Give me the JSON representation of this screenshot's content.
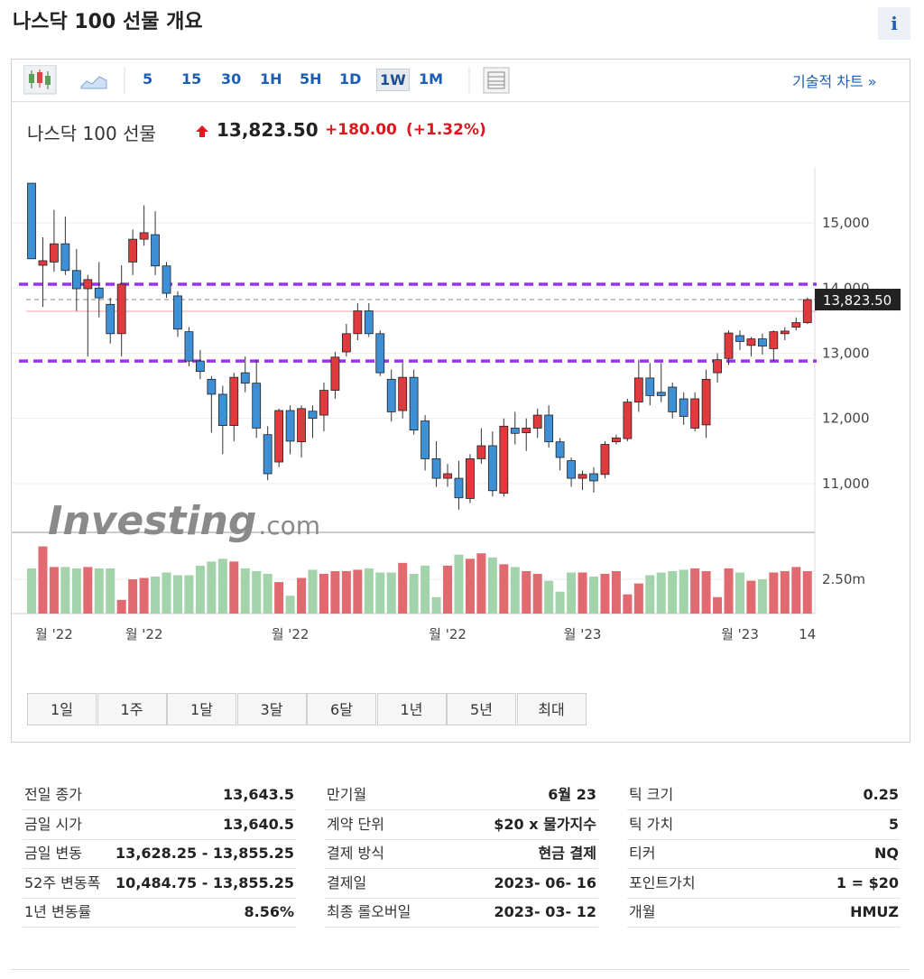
{
  "header": {
    "title": "나스닥 100 선물 개요",
    "info": "i"
  },
  "toolbar": {
    "intervals": [
      "5",
      "15",
      "30",
      "1H",
      "5H",
      "1D",
      "1W",
      "1M"
    ],
    "selected_interval": "1W",
    "technical_link": "기술적 차트 »"
  },
  "quote": {
    "name": "나스닥 100 선물",
    "price": "13,823.50",
    "change": "+180.00",
    "change_pct": "(+1.32%)"
  },
  "chart_data": {
    "type": "candlestick",
    "categories": [
      null,
      null,
      "월 '22",
      null,
      null,
      null,
      null,
      null,
      null,
      null,
      "월 '22",
      null,
      null,
      null,
      null,
      null,
      null,
      null,
      null,
      null,
      null,
      null,
      null,
      "월 '22",
      null,
      null,
      null,
      null,
      null,
      null,
      null,
      null,
      null,
      null,
      null,
      null,
      null,
      "월 '22",
      null,
      null,
      null,
      null,
      null,
      null,
      null,
      null,
      null,
      null,
      null,
      "월 '23",
      null,
      null,
      null,
      null,
      null,
      null,
      null,
      null,
      null,
      null,
      null,
      null,
      null,
      "월 '23",
      null,
      null,
      null,
      null,
      null,
      "14"
    ],
    "candles": [
      [
        15610,
        15610,
        14450,
        14450
      ],
      [
        14350,
        14780,
        13710,
        14420
      ],
      [
        14400,
        15200,
        14250,
        14680
      ],
      [
        14680,
        15100,
        14200,
        14270
      ],
      [
        14270,
        14600,
        13650,
        13990
      ],
      [
        13990,
        14200,
        12950,
        14130
      ],
      [
        14000,
        14400,
        13550,
        13850
      ],
      [
        13750,
        13850,
        13150,
        13300
      ],
      [
        13300,
        14350,
        12950,
        14060
      ],
      [
        14400,
        14900,
        14200,
        14750
      ],
      [
        14750,
        15270,
        14650,
        14850
      ],
      [
        14820,
        15180,
        14200,
        14340
      ],
      [
        14340,
        14400,
        13850,
        13920
      ],
      [
        13880,
        13950,
        13250,
        13370
      ],
      [
        13330,
        13400,
        12800,
        12880
      ],
      [
        12880,
        13050,
        12600,
        12720
      ],
      [
        12600,
        12650,
        11780,
        12370
      ],
      [
        12370,
        12500,
        11450,
        11890
      ],
      [
        11890,
        12700,
        11650,
        12630
      ],
      [
        12700,
        12950,
        12400,
        12540
      ],
      [
        12540,
        12900,
        11700,
        11850
      ],
      [
        11750,
        11880,
        11050,
        11150
      ],
      [
        11330,
        12150,
        11250,
        12120
      ],
      [
        12120,
        12200,
        11450,
        11650
      ],
      [
        11640,
        12200,
        11400,
        12150
      ],
      [
        12110,
        12200,
        11700,
        12000
      ],
      [
        12050,
        12550,
        11800,
        12430
      ],
      [
        12430,
        13020,
        12300,
        12940
      ],
      [
        13020,
        13450,
        12950,
        13300
      ],
      [
        13300,
        13770,
        13200,
        13650
      ],
      [
        13650,
        13770,
        13250,
        13300
      ],
      [
        13300,
        13350,
        12650,
        12700
      ],
      [
        12600,
        12750,
        11950,
        12100
      ],
      [
        12120,
        12850,
        12000,
        12630
      ],
      [
        12630,
        12750,
        11750,
        11820
      ],
      [
        11960,
        12050,
        11200,
        11380
      ],
      [
        11380,
        11650,
        10950,
        11080
      ],
      [
        11080,
        11300,
        10950,
        11150
      ],
      [
        11080,
        11350,
        10600,
        10780
      ],
      [
        10770,
        11450,
        10700,
        11380
      ],
      [
        11380,
        11850,
        11300,
        11580
      ],
      [
        11580,
        11800,
        10800,
        10890
      ],
      [
        10850,
        12000,
        10800,
        11880
      ],
      [
        11850,
        12100,
        11600,
        11770
      ],
      [
        11780,
        12000,
        11500,
        11850
      ],
      [
        11850,
        12150,
        11700,
        12050
      ],
      [
        12050,
        12200,
        11550,
        11640
      ],
      [
        11640,
        11700,
        11200,
        11400
      ],
      [
        11350,
        11400,
        10950,
        11080
      ],
      [
        11080,
        11200,
        10900,
        11140
      ],
      [
        11150,
        11250,
        10860,
        11040
      ],
      [
        11140,
        11650,
        11080,
        11600
      ],
      [
        11640,
        11750,
        11600,
        11700
      ],
      [
        11690,
        12300,
        11650,
        12250
      ],
      [
        12250,
        12900,
        12100,
        12620
      ],
      [
        12620,
        12850,
        12200,
        12350
      ],
      [
        12400,
        12850,
        12250,
        12350
      ],
      [
        12480,
        12550,
        12000,
        12100
      ],
      [
        12300,
        12400,
        11900,
        12030
      ],
      [
        11850,
        12400,
        11800,
        12300
      ],
      [
        11900,
        12750,
        11700,
        12600
      ],
      [
        12700,
        13000,
        12550,
        12900
      ],
      [
        12920,
        13350,
        12820,
        13310
      ],
      [
        13270,
        13350,
        13050,
        13180
      ],
      [
        13120,
        13250,
        12950,
        13220
      ],
      [
        13220,
        13300,
        12980,
        13110
      ],
      [
        13070,
        13350,
        12880,
        13330
      ],
      [
        13300,
        13400,
        13200,
        13340
      ],
      [
        13400,
        13550,
        13350,
        13470
      ],
      [
        13470,
        13855.25,
        13450,
        13823.5
      ]
    ],
    "volumes": [
      3300000,
      4900000,
      3400000,
      3400000,
      3300000,
      3400000,
      3300000,
      3300000,
      1000000,
      2500000,
      2600000,
      2700000,
      3000000,
      2800000,
      2800000,
      3500000,
      3800000,
      4000000,
      3800000,
      3300000,
      3100000,
      2900000,
      2300000,
      1300000,
      2600000,
      3200000,
      2900000,
      3100000,
      3100000,
      3200000,
      3300000,
      3000000,
      3000000,
      3700000,
      2900000,
      3500000,
      1200000,
      3500000,
      4300000,
      4000000,
      4400000,
      4100000,
      3600000,
      3400000,
      3100000,
      2900000,
      2400000,
      1600000,
      3000000,
      3000000,
      2700000,
      2900000,
      3100000,
      1400000,
      2200000,
      2800000,
      3000000,
      3100000,
      3200000,
      3300000,
      3100000,
      1200000,
      3300000,
      3000000,
      2400000,
      2500000,
      3000000,
      3100000,
      3400000,
      3100000
    ],
    "up_color": "#e03a3e",
    "down_color": "#3d8fd6",
    "volume_up_color": "#e06a6f",
    "volume_down_color": "#a3d3aa",
    "ylim": [
      10250,
      15860
    ],
    "yticks": [
      {
        "value": 11000,
        "label": "11,000"
      },
      {
        "value": 12000,
        "label": "12,000"
      },
      {
        "value": 13000,
        "label": "13,000"
      },
      {
        "value": 14000,
        "label": "14,000"
      },
      {
        "value": 15000,
        "label": "15,000"
      }
    ],
    "vlim": [
      0,
      5600000
    ],
    "vticks": [
      {
        "value": 2500000,
        "label": "2.50m"
      }
    ],
    "hlines": [
      {
        "value": 14060,
        "color": "#9b30f0",
        "style": "dashed"
      },
      {
        "value": 12880,
        "color": "#9b30f0",
        "style": "dashed"
      },
      {
        "value": 13823.5,
        "color": "#888888",
        "style": "dotted"
      },
      {
        "value": 13643.5,
        "color": "#f0a0a0",
        "style": "solid"
      }
    ],
    "last_value": 13823.5,
    "last_label": "13,823.50",
    "watermark": [
      "Investing",
      ".com"
    ],
    "grid": true
  },
  "ranges": [
    "1일",
    "1주",
    "1달",
    "3달",
    "6달",
    "1년",
    "5년",
    "최대"
  ],
  "table": {
    "columns": [
      [
        [
          "전일 종가",
          "13,643.5"
        ],
        [
          "금일 시가",
          "13,640.5"
        ],
        [
          "금일 변동",
          "13,628.25 - 13,855.25"
        ],
        [
          "52주 변동폭",
          "10,484.75 - 13,855.25"
        ],
        [
          "1년 변동률",
          "8.56%"
        ]
      ],
      [
        [
          "만기월",
          "6월 23"
        ],
        [
          "계약 단위",
          "$20 x 물가지수"
        ],
        [
          "결제 방식",
          "현금 결제"
        ],
        [
          "결제일",
          "2023- 06- 16"
        ],
        [
          "최종 롤오버일",
          "2023- 03- 12"
        ]
      ],
      [
        [
          "틱 크기",
          "0.25"
        ],
        [
          "틱 가치",
          "5"
        ],
        [
          "티커",
          "NQ"
        ],
        [
          "포인트가치",
          "1 = $20"
        ],
        [
          "개월",
          "HMUZ"
        ]
      ]
    ]
  }
}
